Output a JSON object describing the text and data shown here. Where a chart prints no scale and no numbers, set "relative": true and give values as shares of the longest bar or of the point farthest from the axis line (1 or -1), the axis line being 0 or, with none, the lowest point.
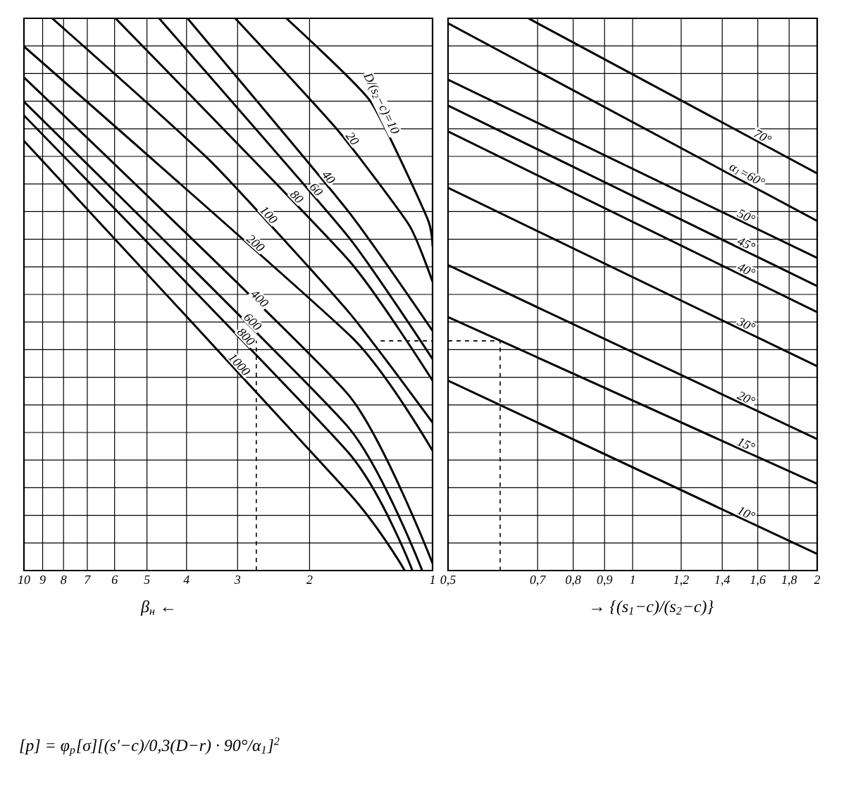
{
  "chart_data": [
    {
      "type": "line",
      "relative": true,
      "log": "x",
      "grid": true,
      "tick_labels": "x",
      "xlim": [
        10,
        1
      ],
      "xticks": [
        10,
        9,
        8,
        7,
        6,
        5,
        4,
        3,
        2,
        1
      ],
      "xlabel": "β$_{н}$ ←",
      "annotations": [
        "[p] = φ$_{р}$[σ][(s′−c)/0,3(D−r) · 90°/α$_{1}$]$^{2}$"
      ],
      "series": [
        {
          "name": "D/(s$_{2}$−c)=10",
          "color": "#000000",
          "x": [
            2.28,
            1.42,
            1.03,
            1.0
          ],
          "values": [
            1,
            0.85,
            0.638,
            0.587
          ]
        },
        {
          "name": "20",
          "color": "#000000",
          "x": [
            3.04,
            1.7,
            1.14,
            1.0
          ],
          "values": [
            1,
            0.796,
            0.625,
            0.523
          ]
        },
        {
          "name": "40",
          "color": "#000000",
          "x": [
            3.98,
            1.61,
            1.0
          ],
          "values": [
            1,
            0.651,
            0.434
          ]
        },
        {
          "name": "60",
          "color": "#000000",
          "x": [
            4.67,
            1.61,
            1.0
          ],
          "values": [
            1,
            0.605,
            0.383
          ]
        },
        {
          "name": "80",
          "color": "#000000",
          "x": [
            5.97,
            1.6,
            1.0
          ],
          "values": [
            1,
            0.561,
            0.344
          ]
        },
        {
          "name": "100",
          "color": "#000000",
          "x": [
            8.53,
            3.48,
            1.6,
            1.0
          ],
          "values": [
            1,
            0.74,
            0.467,
            0.268
          ]
        },
        {
          "name": "200",
          "color": "#000000",
          "x": [
            10,
            1.57,
            1.0
          ],
          "values": [
            0.949,
            0.421,
            0.217
          ]
        },
        {
          "name": "400",
          "color": "#000000",
          "x": [
            10,
            1.61,
            1.0
          ],
          "values": [
            0.893,
            0.319,
            0.013
          ]
        },
        {
          "name": "600",
          "color": "#000000",
          "x": [
            10,
            1.61,
            1.06
          ],
          "values": [
            0.849,
            0.26,
            0
          ]
        },
        {
          "name": "800",
          "color": "#000000",
          "x": [
            10,
            1.6,
            1.12
          ],
          "values": [
            0.824,
            0.212,
            0
          ]
        },
        {
          "name": "1000",
          "color": "#000000",
          "x": [
            10,
            1.6,
            1.17
          ],
          "values": [
            0.778,
            0.14,
            0
          ]
        },
        {
          "color": "#000000",
          "line_style": "dashed",
          "x": [
            2.7,
            2.7
          ],
          "values": [
            0,
            0.416
          ]
        },
        {
          "color": "#000000",
          "line_style": "dashed",
          "x": [
            1.34,
            1
          ],
          "values": [
            0.416,
            0.416
          ]
        }
      ]
    },
    {
      "type": "line",
      "relative": true,
      "log": "x",
      "grid": true,
      "tick_labels": "x",
      "xlim": [
        0.5,
        2
      ],
      "xticks": [
        {
          "value": 0.5,
          "label": "0,5"
        },
        {
          "value": 0.7,
          "label": "0,7"
        },
        {
          "value": 0.8,
          "label": "0,8"
        },
        {
          "value": 0.9,
          "label": "0,9"
        },
        1,
        {
          "value": 1.2,
          "label": "1,2"
        },
        {
          "value": 1.4,
          "label": "1,4"
        },
        {
          "value": 1.6,
          "label": "1,6"
        },
        {
          "value": 1.8,
          "label": "1,8"
        },
        2
      ],
      "xlabel": "→ {(s$_{1}$−c)/(s$_{2}$−c)}",
      "series": [
        {
          "name": "70°",
          "color": "#000000",
          "x": [
            0.676,
            2
          ],
          "values": [
            1,
            0.719
          ]
        },
        {
          "name": "α$_{1}$=60°",
          "color": "#000000",
          "x": [
            0.5,
            2
          ],
          "values": [
            0.991,
            0.633
          ]
        },
        {
          "name": "50°",
          "color": "#000000",
          "x": [
            0.5,
            2
          ],
          "values": [
            0.889,
            0.566
          ]
        },
        {
          "name": "45°",
          "color": "#000000",
          "x": [
            0.5,
            2
          ],
          "values": [
            0.842,
            0.515
          ]
        },
        {
          "name": "40°",
          "color": "#000000",
          "x": [
            0.5,
            2
          ],
          "values": [
            0.795,
            0.468
          ]
        },
        {
          "name": "30°",
          "color": "#000000",
          "x": [
            0.5,
            2
          ],
          "values": [
            0.693,
            0.37
          ]
        },
        {
          "name": "20°",
          "color": "#000000",
          "x": [
            0.5,
            2
          ],
          "values": [
            0.553,
            0.238
          ]
        },
        {
          "name": "15°",
          "color": "#000000",
          "x": [
            0.5,
            2
          ],
          "values": [
            0.459,
            0.157
          ]
        },
        {
          "name": "10°",
          "color": "#000000",
          "x": [
            0.5,
            2
          ],
          "values": [
            0.344,
            0.03
          ]
        },
        {
          "color": "#000000",
          "line_style": "dashed",
          "x": [
            0.5,
            0.608,
            0.608
          ],
          "values": [
            0.416,
            0.416,
            0
          ]
        }
      ]
    }
  ]
}
